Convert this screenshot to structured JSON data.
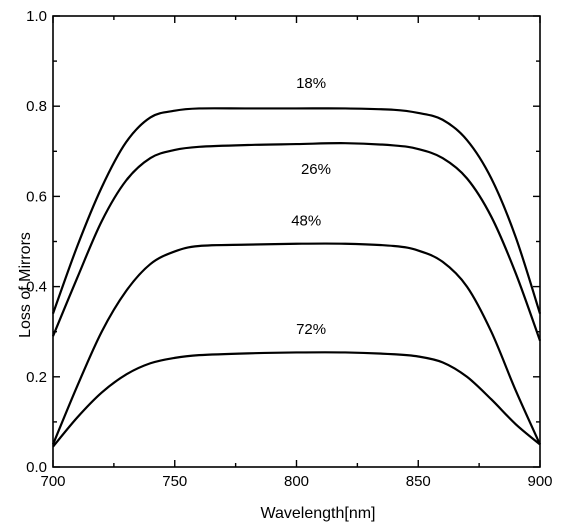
{
  "chart_data": {
    "type": "line",
    "title": "",
    "xlabel": "Wavelength[nm]",
    "ylabel": "Loss of Mirrors",
    "xlim": [
      700,
      900
    ],
    "ylim": [
      0.0,
      1.0
    ],
    "x_ticks": [
      700,
      750,
      800,
      850,
      900
    ],
    "x_tick_labels": [
      "700",
      "750",
      "800",
      "850",
      "900"
    ],
    "y_ticks": [
      0.0,
      0.2,
      0.4,
      0.6,
      0.8,
      1.0
    ],
    "y_tick_labels": [
      "0.0",
      "0.2",
      "0.4",
      "0.6",
      "0.8",
      "1.0"
    ],
    "grid": false,
    "legend": "none",
    "line_color": "#000000",
    "series": [
      {
        "label": "18%",
        "x": [
          700,
          710,
          720,
          730,
          740,
          750,
          760,
          780,
          800,
          820,
          840,
          850,
          860,
          870,
          880,
          890,
          900
        ],
        "y": [
          0.34,
          0.49,
          0.62,
          0.72,
          0.775,
          0.79,
          0.795,
          0.795,
          0.795,
          0.795,
          0.792,
          0.785,
          0.77,
          0.725,
          0.64,
          0.51,
          0.34
        ]
      },
      {
        "label": "26%",
        "x": [
          700,
          710,
          720,
          730,
          740,
          750,
          760,
          780,
          800,
          820,
          840,
          850,
          860,
          870,
          880,
          890,
          900
        ],
        "y": [
          0.29,
          0.42,
          0.545,
          0.635,
          0.685,
          0.703,
          0.71,
          0.714,
          0.716,
          0.718,
          0.713,
          0.705,
          0.685,
          0.64,
          0.555,
          0.43,
          0.28
        ]
      },
      {
        "label": "48%",
        "x": [
          700,
          710,
          720,
          730,
          740,
          750,
          760,
          780,
          800,
          820,
          840,
          850,
          860,
          870,
          880,
          890,
          900
        ],
        "y": [
          0.05,
          0.18,
          0.3,
          0.39,
          0.45,
          0.478,
          0.49,
          0.493,
          0.495,
          0.495,
          0.49,
          0.48,
          0.455,
          0.4,
          0.3,
          0.17,
          0.05
        ]
      },
      {
        "label": "72%",
        "x": [
          700,
          710,
          720,
          730,
          740,
          750,
          760,
          780,
          800,
          820,
          840,
          850,
          860,
          870,
          880,
          890,
          900
        ],
        "y": [
          0.045,
          0.11,
          0.165,
          0.205,
          0.23,
          0.242,
          0.248,
          0.252,
          0.254,
          0.254,
          0.25,
          0.245,
          0.232,
          0.2,
          0.15,
          0.095,
          0.05
        ]
      }
    ],
    "label_anchor_x": [
      806,
      808,
      804,
      806
    ],
    "label_anchor_y": [
      0.84,
      0.65,
      0.535,
      0.295
    ]
  }
}
